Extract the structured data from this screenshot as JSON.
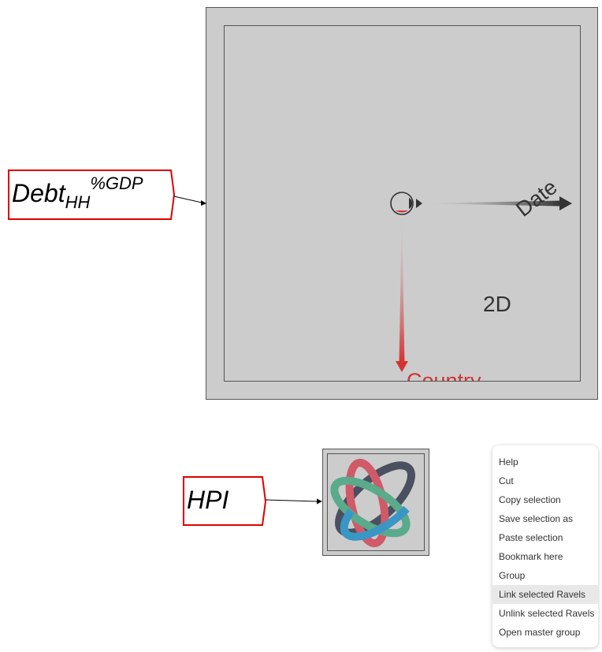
{
  "canvas": {
    "background": "#ffffff",
    "ravel": {
      "label": "2D",
      "axes": [
        {
          "name": "Date",
          "color": "#333333"
        },
        {
          "name": "Country",
          "color": "#d33333"
        }
      ],
      "fill": "#cccccc",
      "border": "#555555"
    },
    "variables": [
      {
        "base": "Debt",
        "sub": "HH",
        "sup": "%GDP",
        "border": "#e00000"
      },
      {
        "base": "HPI",
        "border": "#e00000"
      }
    ],
    "logo_icon": "ravel-logo-icon"
  },
  "context_menu": {
    "items": [
      {
        "label": "Help"
      },
      {
        "label": "Cut"
      },
      {
        "label": "Copy selection"
      },
      {
        "label": "Save selection as"
      },
      {
        "label": "Paste selection"
      },
      {
        "label": "Bookmark here"
      },
      {
        "label": "Group"
      },
      {
        "label": "Link selected Ravels",
        "hover": true
      },
      {
        "label": "Unlink selected Ravels"
      },
      {
        "label": "Open master group"
      }
    ]
  }
}
